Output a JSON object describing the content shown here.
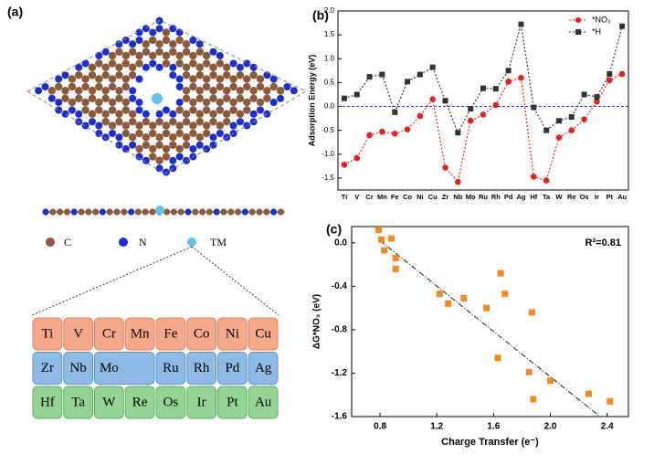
{
  "panel_a": {
    "label": "(a)",
    "legend": [
      "C",
      "N",
      "TM"
    ],
    "table": {
      "rows": [
        [
          "Ti",
          "V",
          "Cr",
          "Mn",
          "Fe",
          "Co",
          "Ni",
          "Cu"
        ],
        [
          "Zr",
          "Nb",
          "Mo",
          "Ru",
          "Rh",
          "Pd",
          "Ag"
        ],
        [
          "Hf",
          "Ta",
          "W",
          "Re",
          "Os",
          "Ir",
          "Pt",
          "Au"
        ]
      ]
    }
  },
  "chart_data": [
    {
      "type": "line",
      "panel": "(b)",
      "ylabel": "Adsorption Energy (eV)",
      "categories": [
        "Ti",
        "V",
        "Cr",
        "Mn",
        "Fe",
        "Co",
        "Ni",
        "Cu",
        "Zr",
        "Nb",
        "Mo",
        "Ru",
        "Rh",
        "Pd",
        "Ag",
        "Hf",
        "Ta",
        "W",
        "Re",
        "Os",
        "Ir",
        "Pt",
        "Au"
      ],
      "series": [
        {
          "name": "*NO₃",
          "color": "#e8201c",
          "marker": "circle",
          "values": [
            -1.22,
            -1.08,
            -0.6,
            -0.53,
            -0.57,
            -0.48,
            -0.2,
            0.15,
            -1.28,
            -1.58,
            -0.3,
            -0.17,
            0.03,
            0.52,
            0.6,
            -1.47,
            -1.55,
            -0.65,
            -0.5,
            -0.27,
            0.1,
            0.55,
            0.68
          ]
        },
        {
          "name": "*H",
          "color": "#333333",
          "marker": "square",
          "values": [
            0.17,
            0.25,
            0.62,
            0.67,
            -0.12,
            0.52,
            0.67,
            0.82,
            0.12,
            -0.55,
            -0.05,
            0.38,
            0.37,
            0.75,
            1.72,
            -0.02,
            -0.5,
            -0.3,
            -0.22,
            0.25,
            0.2,
            0.68,
            1.68
          ]
        }
      ],
      "ylim": [
        -1.75,
        2.0
      ],
      "yticks": [
        -1.5,
        {
          "value": -1.0,
          "label": "-1.0"
        },
        -0.5,
        {
          "value": 0,
          "label": "0.0"
        },
        0.5,
        {
          "value": 1.0,
          "label": "1.0"
        },
        1.5,
        {
          "value": 2.0,
          "label": "2.0"
        }
      ],
      "hline": 0,
      "hline_color": "#1f3fd6",
      "legend": "upper right"
    },
    {
      "type": "scatter",
      "panel": "(c)",
      "xlabel": "Charge Transfer (e⁻)",
      "ylabel": "ΔG*NO₃ (eV)",
      "annotation": "R²=0.81",
      "color": "#f5891f",
      "x": [
        0.79,
        0.81,
        0.83,
        0.88,
        0.91,
        0.91,
        1.22,
        1.28,
        1.39,
        1.55,
        1.65,
        1.68,
        1.87,
        1.63,
        1.85,
        1.88,
        2.0,
        2.27,
        2.42
      ],
      "values": [
        0.12,
        0.03,
        -0.07,
        0.04,
        -0.14,
        -0.24,
        -0.47,
        -0.56,
        -0.51,
        -0.6,
        -0.28,
        -0.47,
        -0.64,
        -1.06,
        -1.19,
        -1.44,
        -1.27,
        -1.39,
        -1.46
      ],
      "fit": {
        "x": [
          0.8,
          2.35
        ],
        "y": [
          0.02,
          -1.6
        ]
      },
      "xlim": [
        0.6,
        2.55
      ],
      "xticks": [
        0.8,
        1.2,
        1.6,
        {
          "value": 2.0,
          "label": "2.0"
        },
        2.4
      ],
      "ylim": [
        -1.6,
        0.15
      ],
      "yticks": [
        {
          "value": 0,
          "label": "0.0"
        },
        -0.4,
        -0.8,
        -1.2,
        -1.6
      ]
    }
  ]
}
